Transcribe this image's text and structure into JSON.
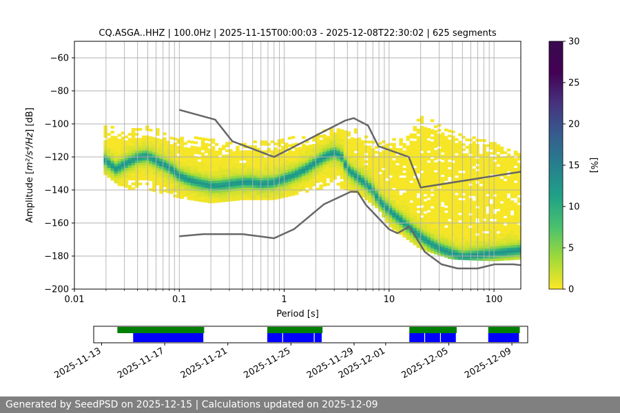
{
  "chart_data": {
    "type": "heatmap",
    "title": "CQ.ASGA..HHZ | 100.0Hz | 2025-11-15T00:00:03 - 2025-12-08T22:30:02 | 625 segments",
    "xlabel": "Period [s]",
    "ylabel_prefix": "Amplitude [",
    "ylabel_unit": "m²/s⁴/Hz",
    "ylabel_suffix": "] [dB]",
    "x_scale": "log",
    "xlim": [
      0.01,
      180
    ],
    "ylim": [
      -200,
      -50
    ],
    "x_ticks": [
      {
        "value": 0.01,
        "label": "0.01"
      },
      {
        "value": 0.1,
        "label": "0.1"
      },
      {
        "value": 1,
        "label": "1"
      },
      {
        "value": 10,
        "label": "10"
      },
      {
        "value": 100,
        "label": "100"
      }
    ],
    "y_ticks": [
      {
        "value": -60,
        "label": "−60"
      },
      {
        "value": -80,
        "label": "−80"
      },
      {
        "value": -100,
        "label": "−100"
      },
      {
        "value": -120,
        "label": "−120"
      },
      {
        "value": -140,
        "label": "−140"
      },
      {
        "value": -160,
        "label": "−160"
      },
      {
        "value": -180,
        "label": "−180"
      },
      {
        "value": -200,
        "label": "−200"
      }
    ],
    "grid": true,
    "psd_mode": {
      "period": [
        0.019,
        0.025,
        0.03,
        0.04,
        0.05,
        0.06,
        0.08,
        0.1,
        0.13,
        0.17,
        0.2,
        0.25,
        0.3,
        0.4,
        0.5,
        0.6,
        0.8,
        1.0,
        1.3,
        1.6,
        2.0,
        2.5,
        3.0,
        3.5,
        4.0,
        5.0,
        6.0,
        7.0,
        8.0,
        10,
        13,
        16,
        20,
        25,
        30,
        40,
        50,
        70,
        100,
        130,
        180
      ],
      "db": [
        -122,
        -128,
        -125,
        -121,
        -120,
        -123,
        -127,
        -132,
        -135,
        -137,
        -138,
        -138,
        -137,
        -136,
        -136,
        -137,
        -136,
        -134,
        -131,
        -128,
        -124,
        -120,
        -118,
        -120,
        -128,
        -133,
        -137,
        -141,
        -147,
        -153,
        -159,
        -164,
        -169,
        -173,
        -176,
        -179,
        -181,
        -180,
        -179,
        -178,
        -177
      ]
    },
    "psd_spread": {
      "period": [
        0.019,
        0.03,
        0.05,
        0.1,
        0.2,
        0.4,
        0.8,
        1.5,
        3.0,
        5.0,
        8.0,
        10,
        15,
        20,
        40,
        100,
        180
      ],
      "upper_db": [
        -100,
        -105,
        -102,
        -108,
        -110,
        -112,
        -110,
        -108,
        -103,
        -103,
        -112,
        -110,
        -108,
        -95,
        -105,
        -112,
        -118
      ],
      "lower_db": [
        -130,
        -140,
        -140,
        -145,
        -148,
        -146,
        -146,
        -142,
        -138,
        -142,
        -152,
        -162,
        -170,
        -176,
        -182,
        -183,
        -182
      ]
    },
    "nhnm": {
      "name": "New High Noise Model",
      "period": [
        0.1,
        0.22,
        0.32,
        0.8,
        3.8,
        4.6,
        6.3,
        7.9,
        15.4,
        20,
        354.8
      ],
      "db": [
        -91.5,
        -97.4,
        -110.5,
        -120.0,
        -98.0,
        -96.5,
        -101.0,
        -113.5,
        -120.0,
        -138.5,
        -126.0
      ]
    },
    "nlnm": {
      "name": "New Low Noise Model",
      "period": [
        0.1,
        0.17,
        0.4,
        0.8,
        1.24,
        2.4,
        4.3,
        5.0,
        6.0,
        10.0,
        12.0,
        15.6,
        21.9,
        31.6,
        45.0,
        70.0,
        101.0,
        154.0,
        328.0
      ],
      "db": [
        -168.0,
        -166.7,
        -166.7,
        -169.2,
        -163.7,
        -148.6,
        -141.1,
        -141.1,
        -149.0,
        -163.8,
        -166.2,
        -162.1,
        -177.5,
        -185.0,
        -187.5,
        -187.5,
        -185.0,
        -185.0,
        -187.5
      ]
    },
    "colorbar": {
      "label": "[%]",
      "min": 0,
      "max": 30,
      "ticks": [
        "0",
        "5",
        "10",
        "15",
        "20",
        "25",
        "30"
      ],
      "colormap": "viridis_r"
    },
    "coverage": {
      "start": "2025-11-12T12:00:00",
      "end": "2025-12-10T00:00:00",
      "data_spans": [
        [
          "2025-11-14T00:00",
          "2025-11-19T12:00"
        ],
        [
          "2025-11-23T12:00",
          "2025-11-27T00:00"
        ],
        [
          "2025-12-02T12:00",
          "2025-12-05T12:00"
        ],
        [
          "2025-12-07T12:00",
          "2025-12-09T12:00"
        ]
      ],
      "psd_spans": [
        [
          "2025-11-15T00:00",
          "2025-11-19T12:00"
        ],
        [
          "2025-11-23T12:00",
          "2025-11-24T12:00"
        ],
        [
          "2025-11-24T12:00",
          "2025-11-26T12:00"
        ],
        [
          "2025-11-26T12:00",
          "2025-11-27T00:00"
        ],
        [
          "2025-12-02T12:00",
          "2025-12-03T12:00"
        ],
        [
          "2025-12-03T12:00",
          "2025-12-04T12:00"
        ],
        [
          "2025-12-04T12:00",
          "2025-12-05T12:00"
        ],
        [
          "2025-12-07T12:00",
          "2025-12-09T12:00"
        ]
      ],
      "data_color": "#008000",
      "psd_color": "#0000ff",
      "date_ticks": [
        "2025-11-13",
        "2025-11-17",
        "2025-11-21",
        "2025-11-25",
        "2025-11-29",
        "2025-12-01",
        "2025-12-05",
        "2025-12-09"
      ]
    },
    "noise_model_color": "#666666"
  },
  "footer_text": "Generated by SeedPSD on 2025-12-15 | Calculations updated on 2025-12-09"
}
